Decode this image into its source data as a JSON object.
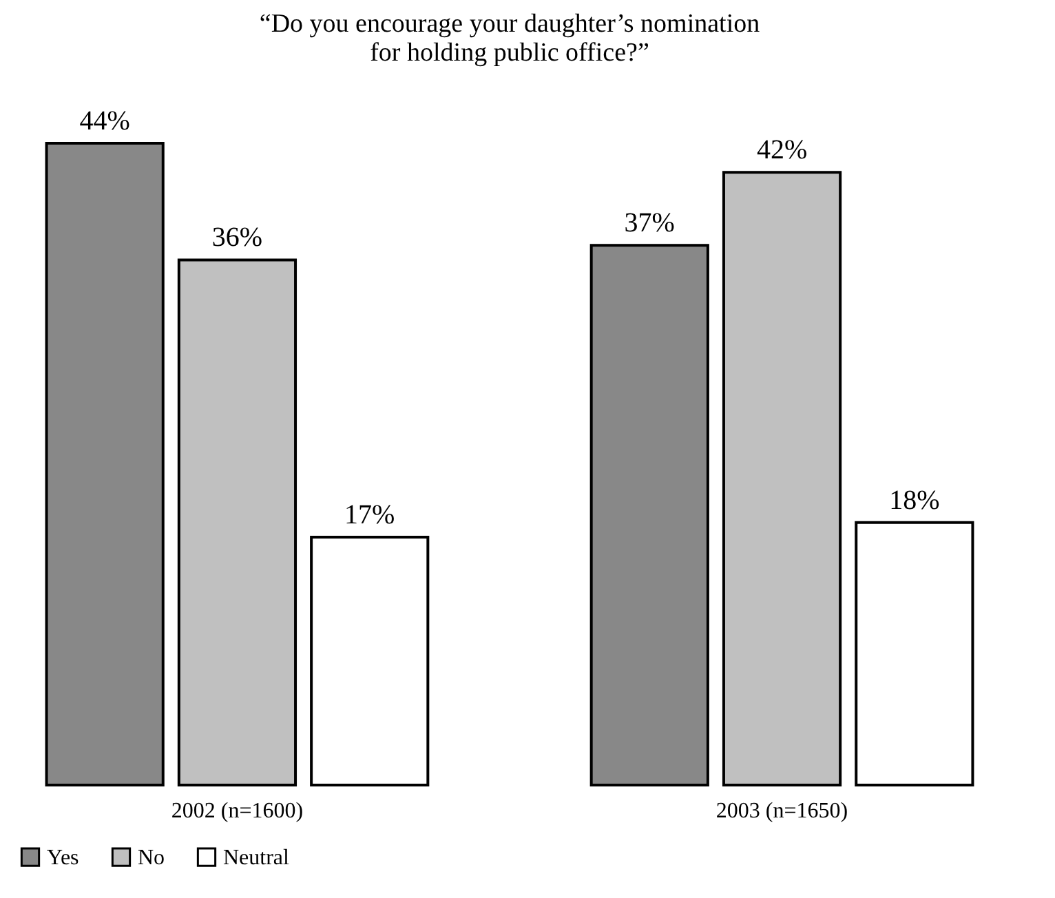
{
  "chart_data": {
    "type": "bar",
    "title": "“Do you encourage your daughter’s nomination\nfor holding public office?”",
    "categories": [
      "2002 (n=1600)",
      "2003 (n=1650)"
    ],
    "series": [
      {
        "name": "Yes",
        "color": "#888888",
        "values": [
          44,
          37
        ],
        "value_labels": [
          "44%",
          "37%"
        ]
      },
      {
        "name": "No",
        "color": "#c0c0c0",
        "values": [
          36,
          42
        ],
        "value_labels": [
          "36%",
          "42%"
        ]
      },
      {
        "name": "Neutral",
        "color": "#ffffff",
        "values": [
          17,
          18
        ],
        "value_labels": [
          "17%",
          "18%"
        ]
      }
    ],
    "legend": "bottom",
    "grid": false
  }
}
